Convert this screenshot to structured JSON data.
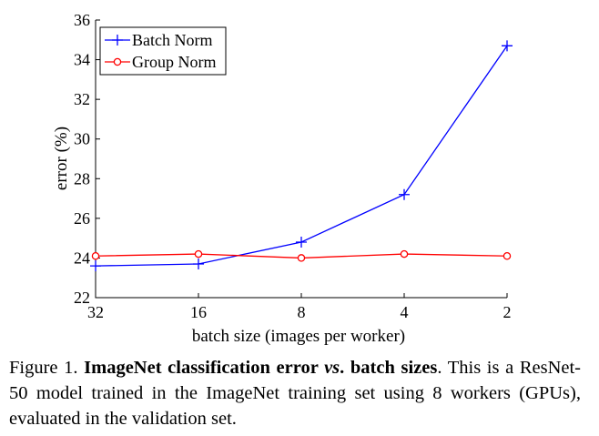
{
  "chart_data": {
    "type": "line",
    "categories": [
      "32",
      "16",
      "8",
      "4",
      "2"
    ],
    "xlabel": "batch size (images per worker)",
    "ylabel": "error (%)",
    "ylim": [
      22,
      36
    ],
    "yticks": [
      "22",
      "24",
      "26",
      "28",
      "30",
      "32",
      "34",
      "36"
    ],
    "grid": false,
    "legend_position": "top-left",
    "series": [
      {
        "name": "Batch Norm",
        "color": "#0000ff",
        "marker": "plus",
        "values": [
          23.6,
          23.7,
          24.8,
          27.2,
          34.7
        ]
      },
      {
        "name": "Group Norm",
        "color": "#ff0000",
        "marker": "circle",
        "values": [
          24.1,
          24.2,
          24.0,
          24.2,
          24.1
        ]
      }
    ]
  },
  "caption": {
    "prefix": "Figure 1. ",
    "bold1": "ImageNet classification error ",
    "italic": "vs",
    "bold2": ". batch sizes",
    "text": ".  This is a ResNet-50 model trained in the ImageNet training set using 8 workers (GPUs), evaluated in the validation set."
  }
}
